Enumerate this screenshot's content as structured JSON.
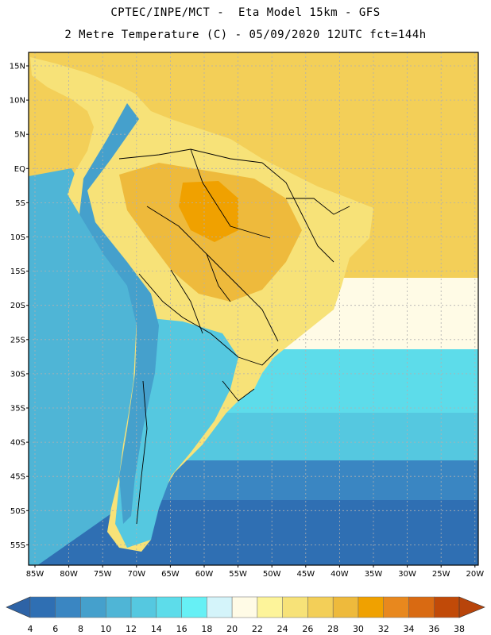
{
  "title_line1": "CPTEC/INPE/MCT -  Eta Model 15km - GFS",
  "title_line2": "2 Metre Temperature (C) - 05/09/2020 12UTC fct=144h",
  "lat_labels": [
    "15N",
    "10N",
    "5N",
    "EQ",
    "5S",
    "10S",
    "15S",
    "20S",
    "25S",
    "30S",
    "35S",
    "40S",
    "45S",
    "50S",
    "55S"
  ],
  "lon_labels": [
    "85W",
    "80W",
    "75W",
    "70W",
    "65W",
    "60W",
    "55W",
    "50W",
    "45W",
    "40W",
    "35W",
    "30W",
    "25W",
    "20W"
  ],
  "colorbar": {
    "labels": [
      "4",
      "6",
      "8",
      "10",
      "12",
      "14",
      "16",
      "18",
      "20",
      "22",
      "24",
      "26",
      "28",
      "30",
      "32",
      "34",
      "36",
      "38"
    ],
    "colors": [
      "#2f6fb3",
      "#3a86c2",
      "#45a0cc",
      "#4fb5d6",
      "#55c8e0",
      "#5ddcea",
      "#66f0f5",
      "#d4f4fa",
      "#fffbe6",
      "#fdf49a",
      "#f7e278",
      "#f3cf58",
      "#eeba3c",
      "#f0a100",
      "#e8881e",
      "#d96a12",
      "#c14a08"
    ],
    "arrow_left": "#2e63a6",
    "arrow_right": "#b8440a"
  },
  "map_colors": {
    "ocean_deep": "#2f6fb3",
    "ocean_mid": "#3a86c2",
    "ocean_cool": "#4fb5d6",
    "ocean_cyan": "#55c8e0",
    "ocean_light": "#5ddcea",
    "ocean_pale": "#fffbe6",
    "warm_light": "#f7e278",
    "warm_mid": "#f3cf58",
    "warm_hot": "#eeba3c",
    "warm_core": "#f0a100",
    "andes": "#45a0cc",
    "border": "#000000"
  }
}
